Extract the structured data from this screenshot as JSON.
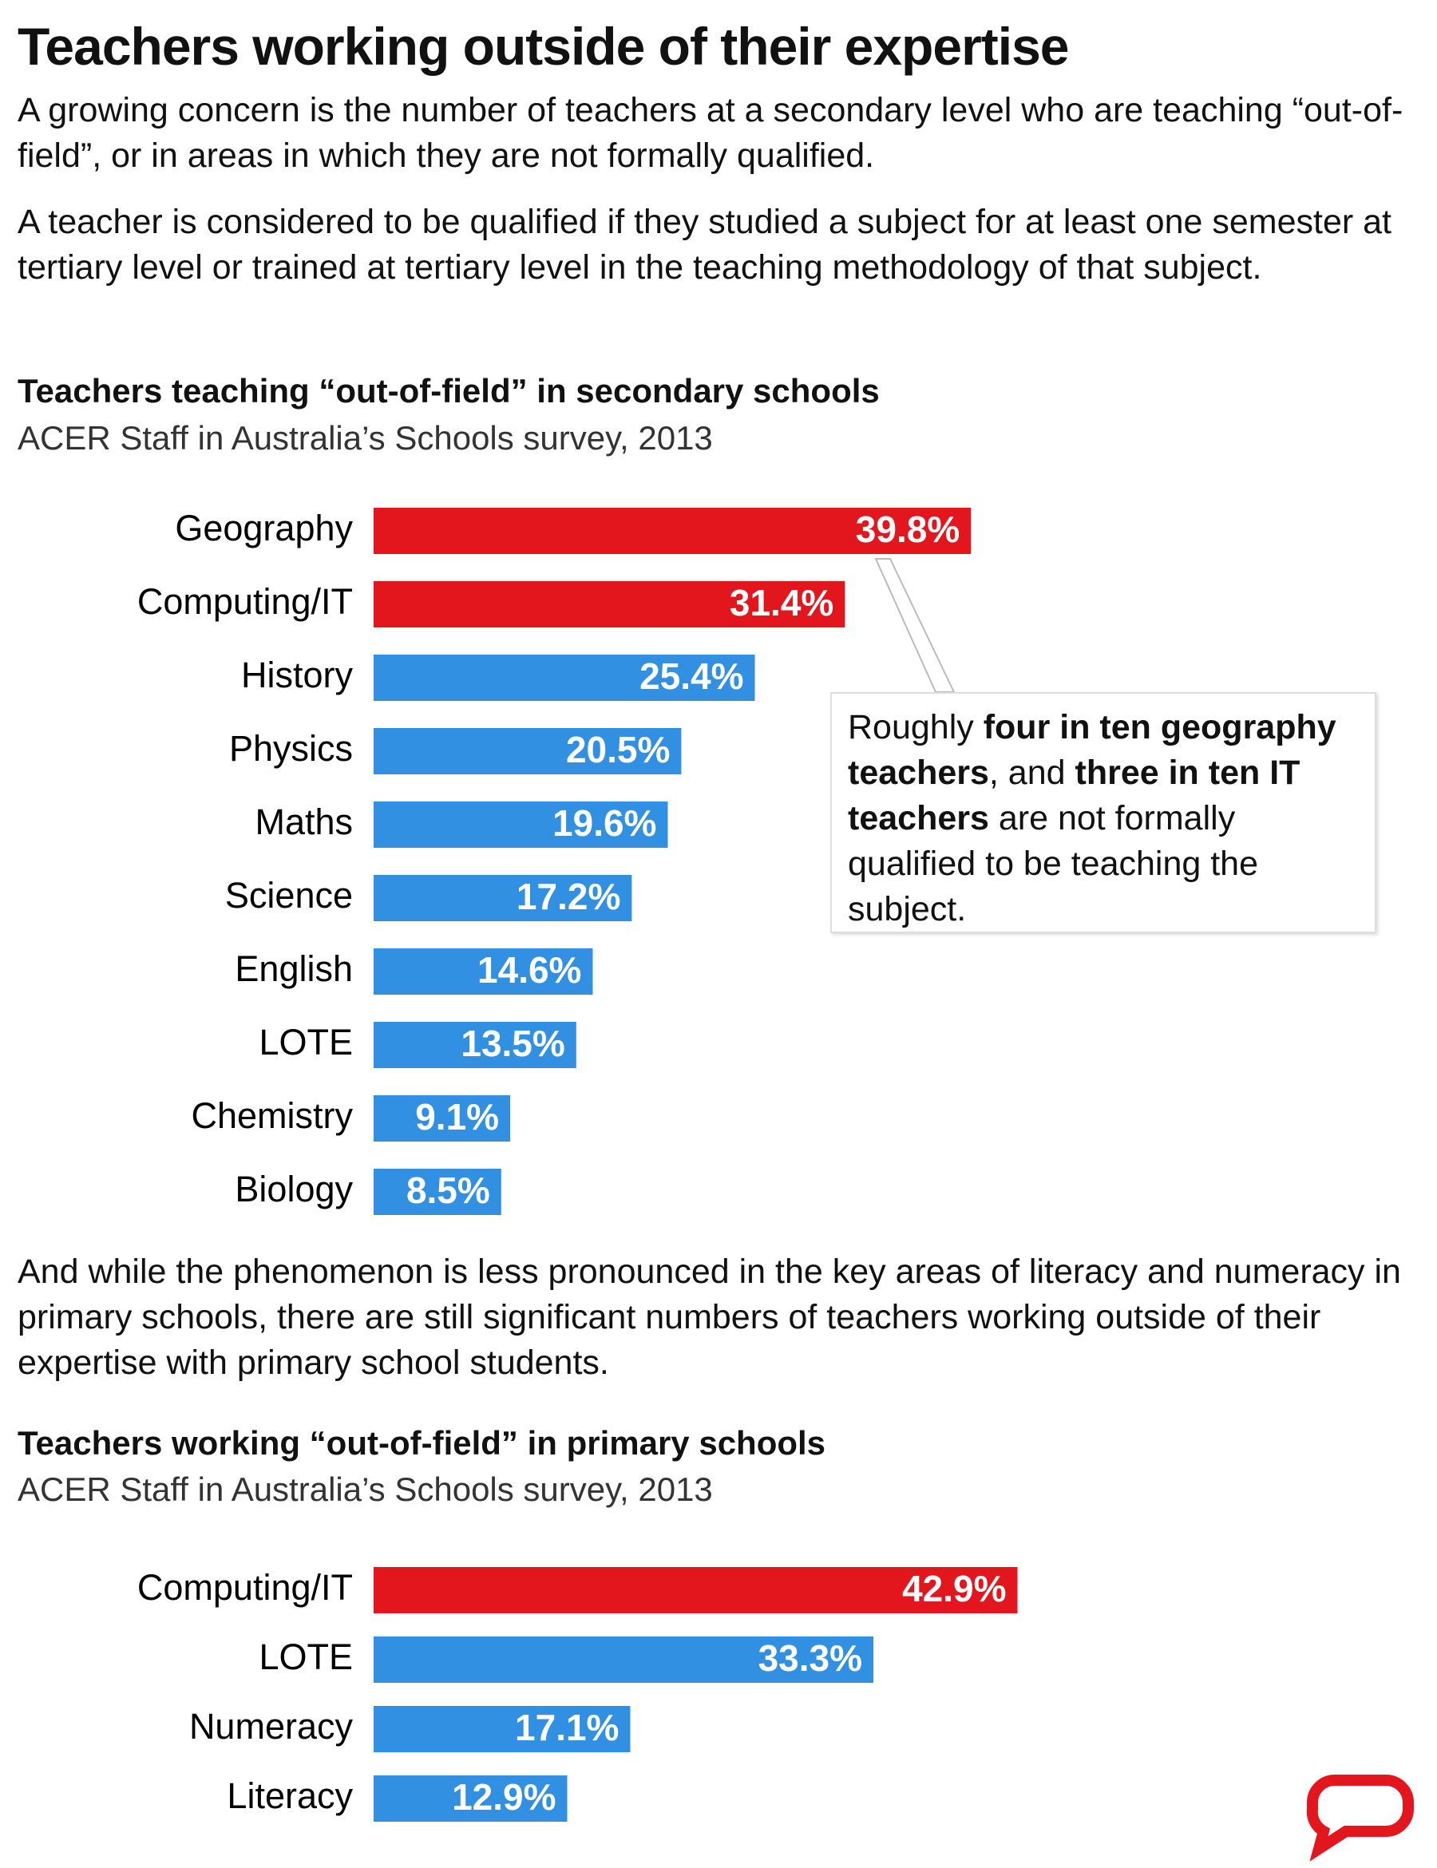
{
  "title": "Teachers working outside of their expertise",
  "paragraphs": [
    "A growing concern is the number of teachers at a secondary level who are teaching “out-of-field”, or in areas in which they are not formally qualified.",
    "A teacher is considered to be qualified if they studied a subject for at least one semester at tertiary level or trained at tertiary level in the teaching methodology of that subject.",
    "And while the phenomenon is less pronounced in the key areas of literacy and numeracy in primary schools, there are still significant numbers of teachers working outside of their expertise with primary school students."
  ],
  "chart_data": [
    {
      "type": "bar",
      "orientation": "horizontal",
      "title": "Teachers teaching “out-of-field” in secondary schools",
      "subtitle": "ACER Staff in Australia’s Schools survey, 2013",
      "categories": [
        "Geography",
        "Computing/IT",
        "History",
        "Physics",
        "Maths",
        "Science",
        "English",
        "LOTE",
        "Chemistry",
        "Biology"
      ],
      "values": [
        39.8,
        31.4,
        25.4,
        20.5,
        19.6,
        17.2,
        14.6,
        13.5,
        9.1,
        8.5
      ],
      "value_labels": [
        "39.8%",
        "31.4%",
        "25.4%",
        "20.5%",
        "19.6%",
        "17.2%",
        "14.6%",
        "13.5%",
        "9.1%",
        "8.5%"
      ],
      "colors": [
        "#e3161d",
        "#e3161d",
        "#3190e2",
        "#3190e2",
        "#3190e2",
        "#3190e2",
        "#3190e2",
        "#3190e2",
        "#3190e2",
        "#3190e2"
      ],
      "annotation": [
        "Roughly ",
        "four in ten geography teachers",
        ", and ",
        "three in ten IT teachers",
        " are not formally qualified to be teaching the subject."
      ]
    },
    {
      "type": "bar",
      "orientation": "horizontal",
      "title": "Teachers working  “out-of-field” in primary schools",
      "subtitle": "ACER Staff in Australia’s Schools survey, 2013",
      "categories": [
        "Computing/IT",
        "LOTE",
        "Numeracy",
        "Literacy"
      ],
      "values": [
        42.9,
        33.3,
        17.1,
        12.9
      ],
      "value_labels": [
        "42.9%",
        "33.3%",
        "17.1%",
        "12.9%"
      ],
      "colors": [
        "#e3161d",
        "#3190e2",
        "#3190e2",
        "#3190e2"
      ]
    }
  ]
}
